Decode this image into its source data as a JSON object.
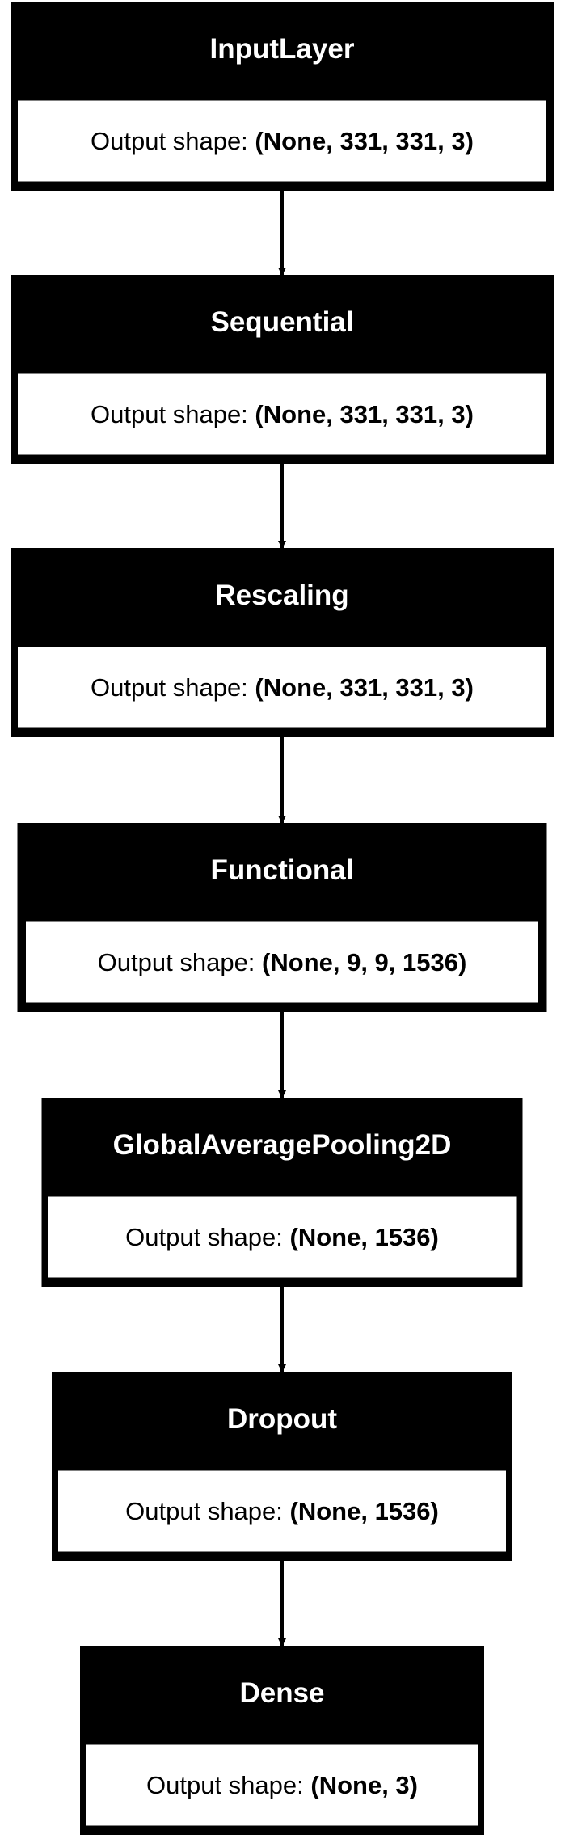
{
  "diagram": {
    "type": "model-layer-graph",
    "output_label": "Output shape: ",
    "layers": [
      {
        "name": "InputLayer",
        "output_shape": "(None, 331, 331, 3)"
      },
      {
        "name": "Sequential",
        "output_shape": "(None, 331, 331, 3)"
      },
      {
        "name": "Rescaling",
        "output_shape": "(None, 331, 331, 3)"
      },
      {
        "name": "Functional",
        "output_shape": "(None, 9, 9, 1536)"
      },
      {
        "name": "GlobalAveragePooling2D",
        "output_shape": "(None, 1536)"
      },
      {
        "name": "Dropout",
        "output_shape": "(None, 1536)"
      },
      {
        "name": "Dense",
        "output_shape": "(None, 3)"
      }
    ],
    "colors": {
      "header_fill": "#000000",
      "header_text": "#ffffff",
      "body_fill": "#ffffff",
      "border": "#000000",
      "arrow": "#000000"
    }
  }
}
